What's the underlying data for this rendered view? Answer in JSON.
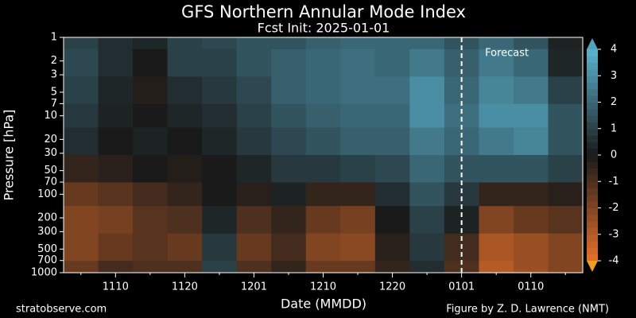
{
  "chart_data": {
    "type": "contour",
    "title": "GFS Northern Annular Mode Index",
    "subtitle": "Fcst Init: 2025-01-01",
    "xlabel": "Date (MMDD)",
    "ylabel": "Pressure [hPa]",
    "annotation": "Forecast",
    "forecast_start": "0101",
    "footer_left": "stratobserve.com",
    "footer_right": "Figure by Z. D. Lawrence (NMT)",
    "x": [
      null,
      "1110",
      null,
      "1120",
      null,
      "1201",
      null,
      "1210",
      null,
      "1220",
      null,
      "0101",
      null,
      "0110",
      null
    ],
    "y": [
      1,
      2,
      5,
      10,
      20,
      50,
      100,
      200,
      500,
      1000
    ],
    "z": [
      [
        1.0,
        0.5,
        0.3,
        1.0,
        1.2,
        1.5,
        1.5,
        1.8,
        2.0,
        2.0,
        2.0,
        1.5,
        2.0,
        1.5,
        0.2
      ],
      [
        1.2,
        0.5,
        0.0,
        1.0,
        1.0,
        1.5,
        1.8,
        2.0,
        2.2,
        2.0,
        2.5,
        1.8,
        2.5,
        2.0,
        0.3
      ],
      [
        1.0,
        0.3,
        -0.2,
        0.5,
        0.8,
        1.2,
        1.8,
        2.0,
        2.2,
        2.2,
        3.0,
        2.0,
        2.8,
        2.5,
        1.0
      ],
      [
        0.8,
        0.2,
        0.0,
        0.3,
        0.5,
        1.0,
        1.5,
        1.8,
        2.0,
        2.0,
        3.0,
        2.2,
        3.0,
        3.0,
        1.5
      ],
      [
        0.5,
        0.0,
        0.2,
        0.0,
        0.3,
        0.8,
        1.2,
        1.5,
        1.8,
        1.8,
        2.5,
        2.0,
        2.5,
        2.8,
        1.5
      ],
      [
        -0.5,
        -0.3,
        0.0,
        -0.2,
        0.0,
        0.3,
        0.8,
        0.8,
        1.0,
        1.2,
        2.0,
        1.5,
        1.5,
        1.5,
        1.0
      ],
      [
        -1.5,
        -1.2,
        -0.8,
        -0.5,
        0.0,
        -0.3,
        0.2,
        -0.5,
        -0.5,
        0.5,
        1.5,
        0.8,
        -0.5,
        -0.5,
        -0.3
      ],
      [
        -2.0,
        -1.8,
        -1.2,
        -1.0,
        0.3,
        -1.0,
        -0.5,
        -1.5,
        -1.8,
        0.0,
        1.0,
        0.2,
        -2.0,
        -1.5,
        -1.2
      ],
      [
        -2.0,
        -1.5,
        -1.2,
        -1.5,
        0.8,
        -1.5,
        -0.8,
        -2.0,
        -2.2,
        -0.3,
        0.8,
        -0.8,
        -2.8,
        -2.5,
        -2.0
      ],
      [
        -1.5,
        -0.8,
        -1.0,
        -1.0,
        1.0,
        -1.0,
        -0.5,
        -1.5,
        -1.5,
        -0.5,
        0.5,
        -1.0,
        -3.0,
        -2.5,
        -2.0
      ]
    ],
    "ylim": [
      1000,
      1
    ],
    "ylog": true,
    "yticks": [
      1,
      2,
      3,
      5,
      7,
      10,
      20,
      30,
      50,
      70,
      100,
      200,
      300,
      500,
      700,
      1000
    ],
    "clim": [
      -4,
      4
    ],
    "cticks": [
      -4,
      -3,
      -2,
      -1,
      0,
      1,
      2,
      3,
      4
    ],
    "colormap": [
      "#e8702a",
      "#1a1a1a",
      "#5ab4d0"
    ]
  }
}
